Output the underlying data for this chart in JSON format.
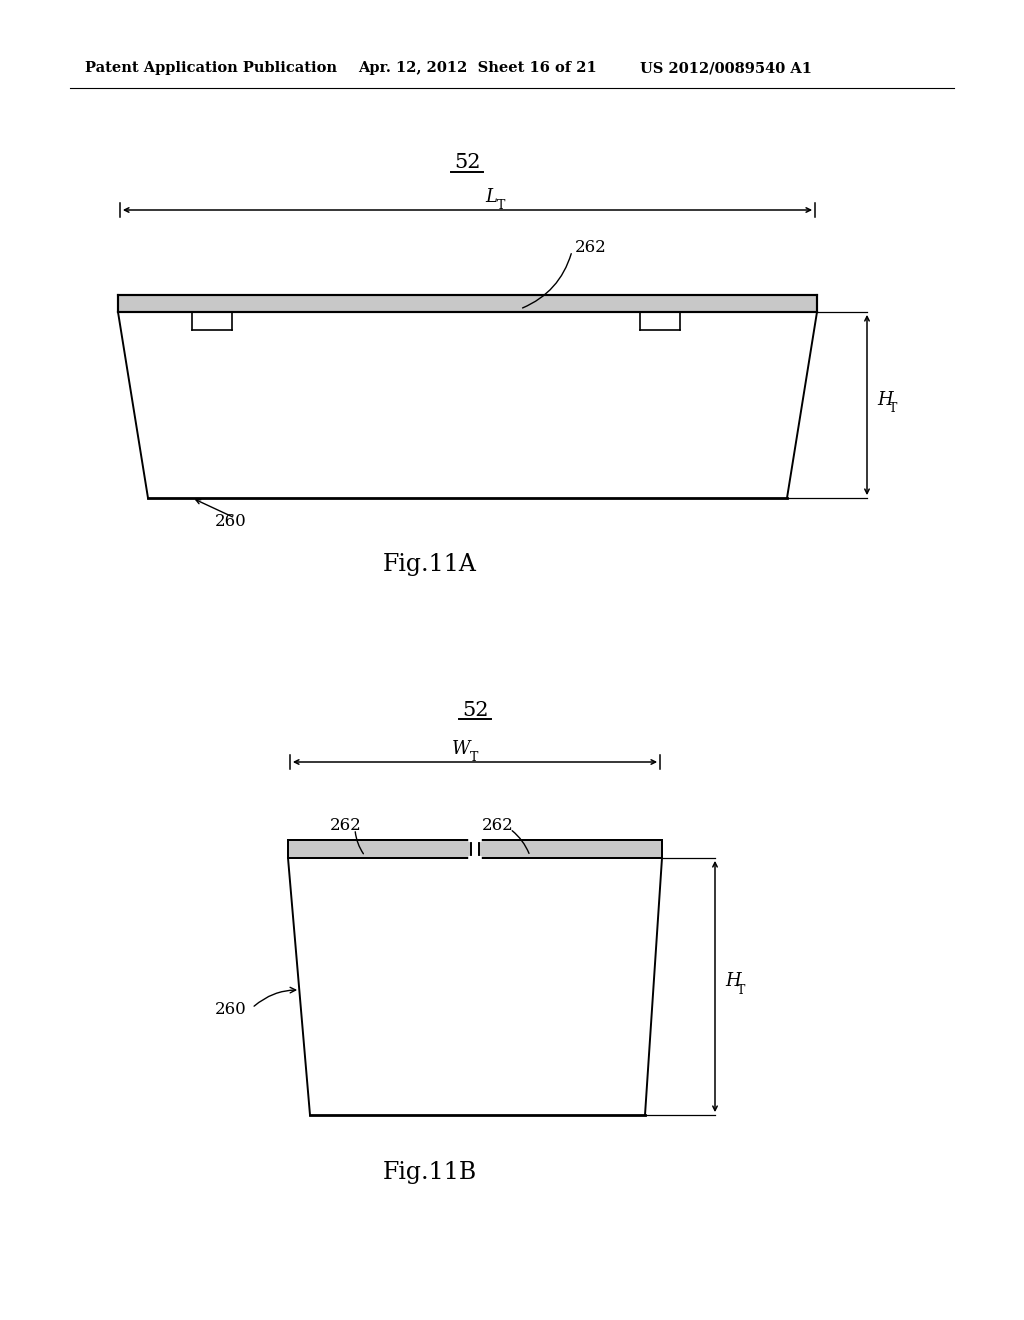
{
  "bg_color": "#ffffff",
  "header_left": "Patent Application Publication",
  "header_mid": "Apr. 12, 2012  Sheet 16 of 21",
  "header_right": "US 2012/0089540 A1",
  "fig_label_A": "Fig.11A",
  "fig_label_B": "Fig.11B",
  "label_52": "52",
  "label_LT": "LT",
  "label_HT_A": "HT",
  "label_HT_B": "HT",
  "label_WT": "WT",
  "label_260_A": "260",
  "label_260_B": "260",
  "label_262_A": "262",
  "label_262_B1": "262",
  "label_262_B2": "262",
  "line_color": "#000000",
  "text_color": "#000000"
}
